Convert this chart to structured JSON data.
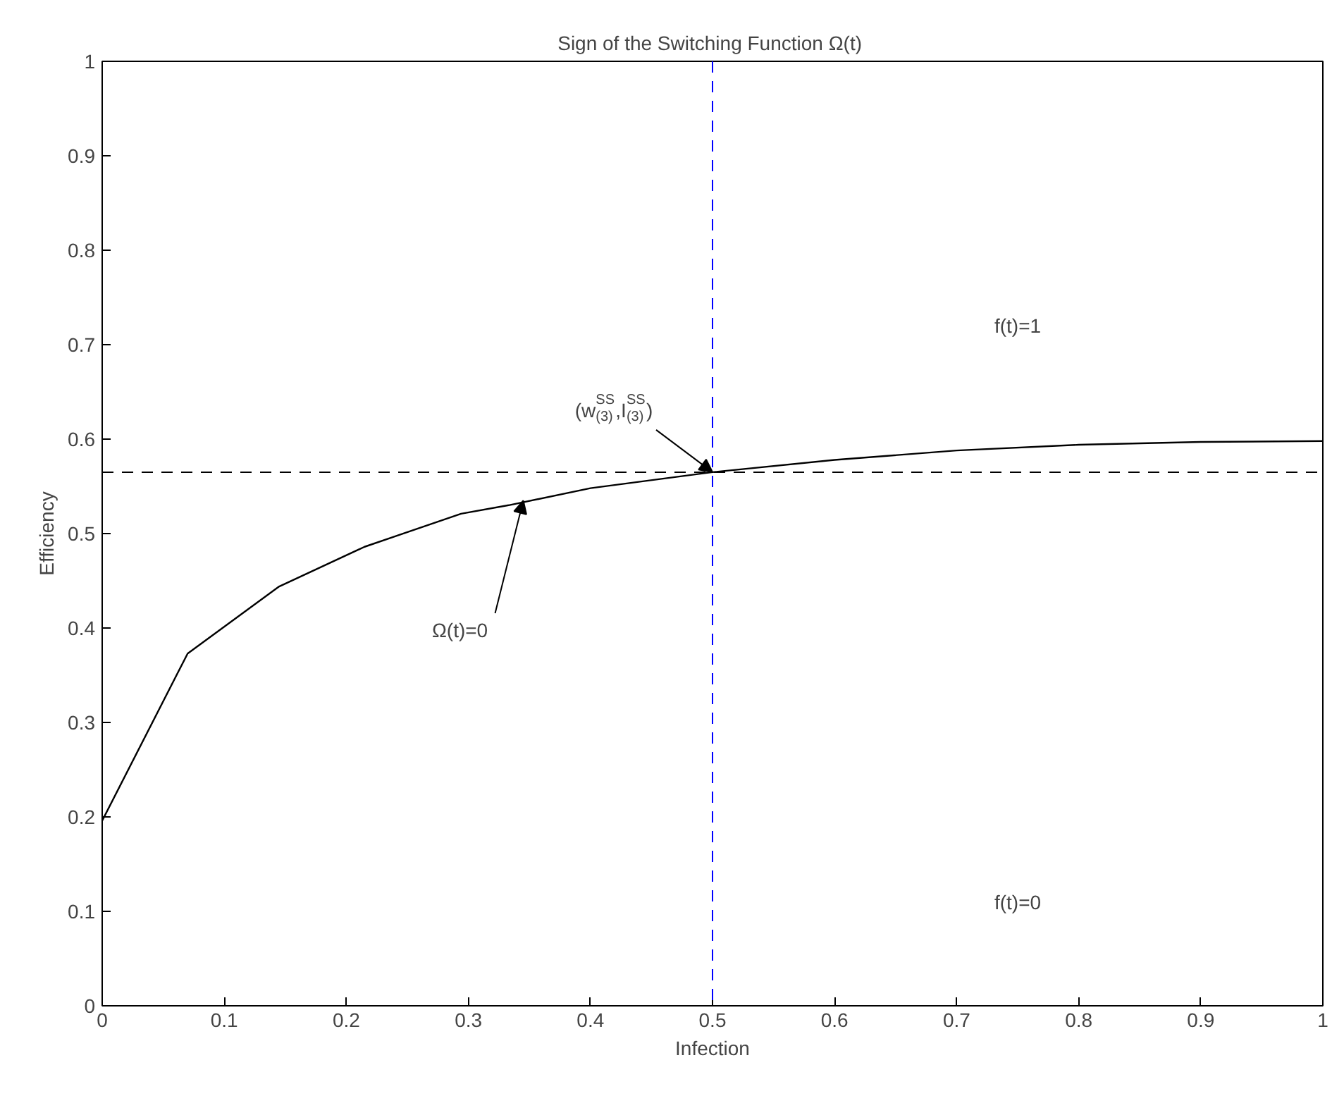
{
  "chart_data": {
    "type": "line",
    "title": "Sign of the Switching Function  Ω(t)",
    "xlabel": "Infection",
    "ylabel": "Efficiency",
    "x": [
      0,
      0.07,
      0.145,
      0.215,
      0.294,
      0.333,
      0.4,
      0.5,
      0.6,
      0.7,
      0.8,
      0.9,
      1.0
    ],
    "series": [
      {
        "color": "#000000",
        "values": [
          0.196,
          0.373,
          0.444,
          0.486,
          0.521,
          0.53,
          0.548,
          0.565,
          0.578,
          0.588,
          0.594,
          0.597,
          0.598
        ]
      }
    ],
    "xlim": [
      0,
      1
    ],
    "ylim": [
      0,
      1
    ],
    "xticks": [
      0,
      0.1,
      0.2,
      0.3,
      0.4,
      0.5,
      0.6,
      0.7,
      0.8,
      0.9,
      1
    ],
    "yticks": [
      0,
      0.1,
      0.2,
      0.3,
      0.4,
      0.5,
      0.6,
      0.7,
      0.8,
      0.9,
      1
    ],
    "ref_lines": [
      {
        "axis": "y",
        "value": 0.565,
        "color": "#000000",
        "line_style": "dashed"
      },
      {
        "axis": "x",
        "value": 0.5,
        "color": "#0000ff",
        "line_style": "dashed"
      }
    ],
    "annotations": [
      {
        "text": "(w$^{SS}$$_{(3)}$,I$^{SS}$$_{(3)}$)",
        "x": 0.5,
        "y": 0.565
      },
      {
        "text": "Ω(t)=0",
        "x": 0.345,
        "y": 0.535
      },
      "f(t)=1",
      "f(t)=0"
    ],
    "grid": false,
    "marker": "none",
    "line_style": "solid"
  }
}
